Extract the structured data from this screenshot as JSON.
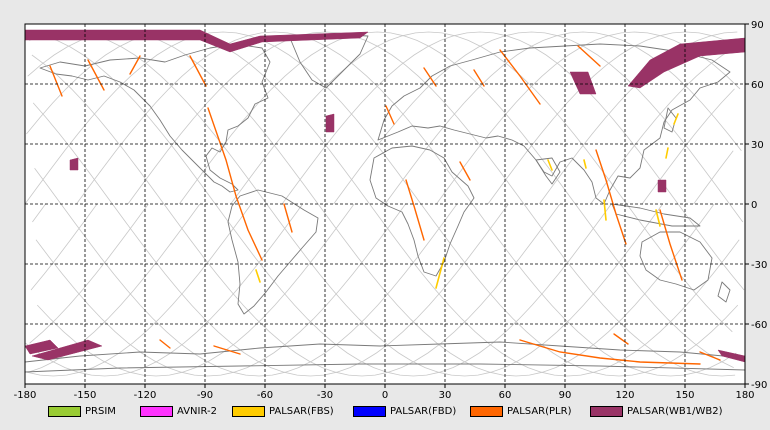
{
  "map": {
    "x_ticks": [
      "-180",
      "-150",
      "-120",
      "-90",
      "-60",
      "-30",
      "0",
      "30",
      "60",
      "90",
      "120",
      "150",
      "180"
    ],
    "y_ticks": [
      "90",
      "60",
      "30",
      "0",
      "-30",
      "-60",
      "-90"
    ]
  },
  "legend": [
    {
      "label": "PRSIM",
      "color": "#99cc33"
    },
    {
      "label": "AVNIR-2",
      "color": "#ff33ff"
    },
    {
      "label": "PALSAR(FBS)",
      "color": "#ffcc00"
    },
    {
      "label": "PALSAR(FBD)",
      "color": "#0000ff"
    },
    {
      "label": "PALSAR(PLR)",
      "color": "#ff6600"
    },
    {
      "label": "PALSAR(WB1/WB2)",
      "color": "#993366"
    }
  ],
  "colors": {
    "coastline": "#7a7a7a",
    "orbit": "#c8c8c8",
    "grid": "#000000",
    "plot_bg": "#ffffff",
    "frame_bg": "#e8e8e8"
  }
}
